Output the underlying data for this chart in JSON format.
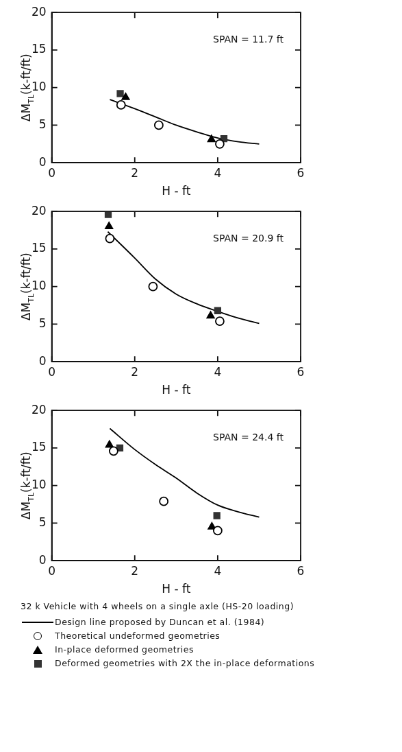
{
  "chart_data": [
    {
      "type": "scatter",
      "xlabel": "H - ft",
      "ylabel": "ΔM$_{TL}$(k-ft/ft)",
      "xlim": [
        0,
        6
      ],
      "xticks": [
        0,
        2,
        4,
        6
      ],
      "ylim": [
        0,
        20
      ],
      "yticks": [
        0,
        5,
        10,
        15,
        20
      ],
      "grid": false,
      "annotations": [
        "SPAN = 11.7 ft"
      ],
      "series": [
        {
          "type": "line",
          "color": "#000000",
          "marker": "none",
          "x": [
            1.4,
            2,
            2.5,
            3,
            3.5,
            4,
            4.5,
            5
          ],
          "values": [
            8.4,
            7.2,
            6.1,
            5.0,
            4.1,
            3.3,
            2.8,
            2.5
          ]
        },
        {
          "type": "scatter",
          "color": "#000000",
          "marker": "circle",
          "x": [
            1.67,
            2.58,
            4.05
          ],
          "values": [
            7.7,
            5.0,
            2.5
          ]
        },
        {
          "type": "scatter",
          "color": "#000000",
          "marker": "triangle",
          "x": [
            1.78,
            3.85
          ],
          "values": [
            8.7,
            3.1
          ]
        },
        {
          "type": "scatter",
          "color": "#333333",
          "marker": "square",
          "x": [
            1.65,
            4.15
          ],
          "values": [
            9.2,
            3.2
          ]
        }
      ]
    },
    {
      "type": "scatter",
      "xlabel": "H - ft",
      "ylabel": "ΔM$_{TL}$(k-ft/ft)",
      "xlim": [
        0,
        6
      ],
      "xticks": [
        0,
        2,
        4,
        6
      ],
      "ylim": [
        0,
        20
      ],
      "yticks": [
        0,
        5,
        10,
        15,
        20
      ],
      "grid": false,
      "annotations": [
        "SPAN = 20.9 ft"
      ],
      "series": [
        {
          "type": "line",
          "color": "#000000",
          "marker": "none",
          "x": [
            1.35,
            2,
            2.5,
            3,
            3.5,
            4,
            4.5,
            5
          ],
          "values": [
            17.3,
            13.8,
            11.0,
            9.0,
            7.7,
            6.7,
            5.8,
            5.1
          ]
        },
        {
          "type": "scatter",
          "color": "#000000",
          "marker": "circle",
          "x": [
            1.4,
            2.44,
            4.05
          ],
          "values": [
            16.4,
            10.0,
            5.4
          ]
        },
        {
          "type": "scatter",
          "color": "#000000",
          "marker": "triangle",
          "x": [
            1.38,
            3.83
          ],
          "values": [
            18.0,
            6.1
          ]
        },
        {
          "type": "scatter",
          "color": "#333333",
          "marker": "square",
          "x": [
            1.36,
            4.0
          ],
          "values": [
            19.6,
            6.8
          ]
        }
      ]
    },
    {
      "type": "scatter",
      "xlabel": "H - ft",
      "ylabel": "ΔM$_{TL}$(k-ft/ft)",
      "xlim": [
        0,
        6
      ],
      "xticks": [
        0,
        2,
        4,
        6
      ],
      "ylim": [
        0,
        20
      ],
      "yticks": [
        0,
        5,
        10,
        15,
        20
      ],
      "grid": false,
      "annotations": [
        "SPAN = 24.4 ft"
      ],
      "legend": "bottom",
      "legend_title": "32 k Vehicle with 4 wheels on a single axle (HS-20 loading)",
      "series": [
        {
          "type": "line",
          "name": "Design line proposed by Duncan et al. (1984)",
          "color": "#000000",
          "marker": "none",
          "x": [
            1.4,
            2,
            2.5,
            3,
            3.5,
            4,
            4.5,
            5
          ],
          "values": [
            17.6,
            14.8,
            12.8,
            11.0,
            9.0,
            7.4,
            6.5,
            5.8
          ]
        },
        {
          "type": "scatter",
          "name": "Theoretical undeformed geometries",
          "color": "#000000",
          "marker": "circle",
          "x": [
            1.49,
            2.7,
            4.0
          ],
          "values": [
            14.6,
            7.9,
            4.0
          ]
        },
        {
          "type": "scatter",
          "name": "In-place deformed geometries",
          "color": "#000000",
          "marker": "triangle",
          "x": [
            1.39,
            3.86
          ],
          "values": [
            15.4,
            4.5
          ]
        },
        {
          "type": "scatter",
          "name": "Deformed geometries with 2X the in-place deformations",
          "color": "#333333",
          "marker": "square",
          "x": [
            1.64,
            3.98
          ],
          "values": [
            15.0,
            6.0
          ]
        }
      ]
    }
  ]
}
